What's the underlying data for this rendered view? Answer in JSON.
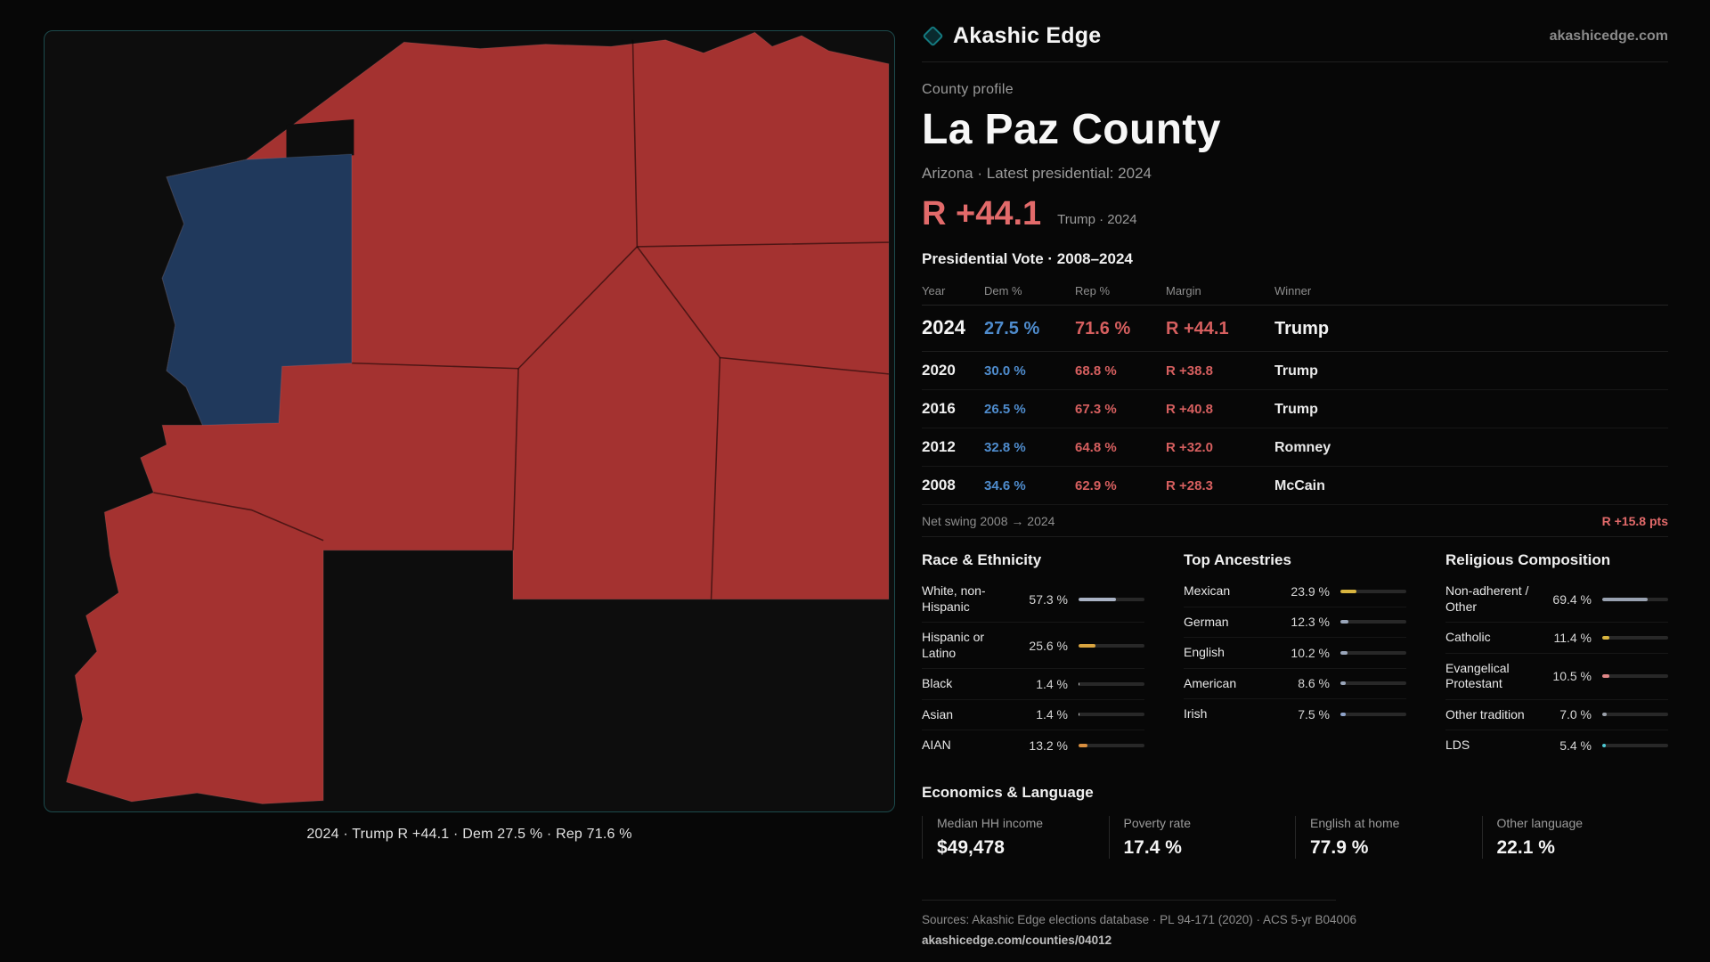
{
  "colors": {
    "dem": "#4f8ccd",
    "rep": "#d65f5f",
    "accent_red": "#e26a6a",
    "map_rep": "#a43230",
    "map_selected": "#20395c",
    "frame_teal": "#1c4a4c",
    "brand_teal": "#147a80"
  },
  "header": {
    "brand": "Akashic Edge",
    "site_link": "akashicedge.com",
    "logo_icon": "diamond-icon"
  },
  "profile": {
    "kicker": "County profile",
    "title": "La Paz County",
    "subtitle": "Arizona · Latest presidential: 2024",
    "headline_margin": "R +44.1",
    "headline_note": "Trump · 2024"
  },
  "map": {
    "caption": "2024 · Trump R +44.1 · Dem 27.5 % · Rep 71.6 %"
  },
  "vote_table": {
    "title": "Presidential Vote · 2008–2024",
    "columns": {
      "year": "Year",
      "dem": "Dem %",
      "rep": "Rep %",
      "margin": "Margin",
      "winner": "Winner"
    },
    "rows": [
      {
        "year": "2024",
        "dem": "27.5 %",
        "rep": "71.6 %",
        "margin": "R +44.1",
        "winner": "Trump"
      },
      {
        "year": "2020",
        "dem": "30.0 %",
        "rep": "68.8 %",
        "margin": "R +38.8",
        "winner": "Trump"
      },
      {
        "year": "2016",
        "dem": "26.5 %",
        "rep": "67.3 %",
        "margin": "R +40.8",
        "winner": "Trump"
      },
      {
        "year": "2012",
        "dem": "32.8 %",
        "rep": "64.8 %",
        "margin": "R +32.0",
        "winner": "Romney"
      },
      {
        "year": "2008",
        "dem": "34.6 %",
        "rep": "62.9 %",
        "margin": "R +28.3",
        "winner": "McCain"
      }
    ],
    "net_swing_label": "Net swing 2008 → 2024",
    "net_swing_value": "R +15.8 pts"
  },
  "demographics": [
    {
      "title": "Race & Ethnicity",
      "rows": [
        {
          "label": "White, non-Hispanic",
          "value": "57.3 %",
          "pct": 57.3,
          "color": "#a9b2c4"
        },
        {
          "label": "Hispanic or Latino",
          "value": "25.6 %",
          "pct": 25.6,
          "color": "#d9a43f"
        },
        {
          "label": "Black",
          "value": "1.4 %",
          "pct": 1.4,
          "color": "#c9c9c9"
        },
        {
          "label": "Asian",
          "value": "1.4 %",
          "pct": 1.4,
          "color": "#c9c9c9"
        },
        {
          "label": "AIAN",
          "value": "13.2 %",
          "pct": 13.2,
          "color": "#d98f3f"
        }
      ]
    },
    {
      "title": "Top Ancestries",
      "rows": [
        {
          "label": "Mexican",
          "value": "23.9 %",
          "pct": 23.9,
          "color": "#d9b53f"
        },
        {
          "label": "German",
          "value": "12.3 %",
          "pct": 12.3,
          "color": "#9aa6ba"
        },
        {
          "label": "English",
          "value": "10.2 %",
          "pct": 10.2,
          "color": "#9aa6ba"
        },
        {
          "label": "American",
          "value": "8.6 %",
          "pct": 8.6,
          "color": "#9aa6ba"
        },
        {
          "label": "Irish",
          "value": "7.5 %",
          "pct": 7.5,
          "color": "#8fa3c9"
        }
      ]
    },
    {
      "title": "Religious Composition",
      "rows": [
        {
          "label": "Non-adherent / Other",
          "value": "69.4 %",
          "pct": 69.4,
          "color": "#98a1b0"
        },
        {
          "label": "Catholic",
          "value": "11.4 %",
          "pct": 11.4,
          "color": "#d9b53f"
        },
        {
          "label": "Evangelical Protestant",
          "value": "10.5 %",
          "pct": 10.5,
          "color": "#e08787"
        },
        {
          "label": "Other tradition",
          "value": "7.0 %",
          "pct": 7.0,
          "color": "#9aa0aa"
        },
        {
          "label": "LDS",
          "value": "5.4 %",
          "pct": 5.4,
          "color": "#4cc9d4"
        }
      ]
    }
  ],
  "economics": {
    "title": "Economics & Language",
    "stats": [
      {
        "label": "Median HH income",
        "value": "$49,478"
      },
      {
        "label": "Poverty rate",
        "value": "17.4 %"
      },
      {
        "label": "English at home",
        "value": "77.9 %"
      },
      {
        "label": "Other language",
        "value": "22.1 %"
      }
    ]
  },
  "footer": {
    "sources": "Sources: Akashic Edge elections database · PL 94-171 (2020) · ACS 5-yr B04006",
    "permalink": "akashicedge.com/counties/04012"
  }
}
